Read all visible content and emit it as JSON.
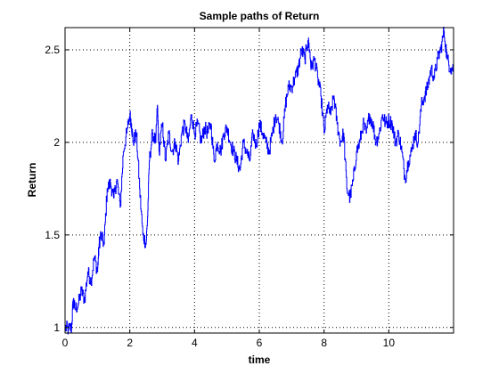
{
  "chart_data": {
    "type": "line",
    "title": "Sample paths of Return",
    "xlabel": "time",
    "ylabel": "Return",
    "xlim": [
      0,
      12
    ],
    "ylim": [
      0.97,
      2.62
    ],
    "xticks": [
      0,
      2,
      4,
      6,
      8,
      10
    ],
    "yticks": [
      1,
      1.5,
      2,
      2.5
    ],
    "xtick_labels": [
      "0",
      "2",
      "4",
      "6",
      "8",
      "10"
    ],
    "ytick_labels": [
      "1",
      "1.5",
      "2",
      "2.5"
    ],
    "grid": true,
    "series": [
      {
        "color": "#0000ff",
        "x": [
          0,
          0.1,
          0.2,
          0.25,
          0.3,
          0.4,
          0.5,
          0.6,
          0.7,
          0.8,
          0.9,
          1.0,
          1.05,
          1.1,
          1.2,
          1.3,
          1.4,
          1.5,
          1.6,
          1.7,
          1.8,
          1.9,
          2.0,
          2.05,
          2.1,
          2.2,
          2.3,
          2.4,
          2.5,
          2.55,
          2.6,
          2.7,
          2.8,
          2.85,
          2.9,
          3.0,
          3.1,
          3.2,
          3.3,
          3.4,
          3.5,
          3.6,
          3.7,
          3.8,
          3.9,
          4.0,
          4.1,
          4.2,
          4.3,
          4.4,
          4.5,
          4.6,
          4.7,
          4.8,
          4.9,
          5.0,
          5.1,
          5.2,
          5.3,
          5.4,
          5.5,
          5.6,
          5.7,
          5.8,
          5.9,
          6.0,
          6.1,
          6.2,
          6.3,
          6.4,
          6.5,
          6.6,
          6.7,
          6.8,
          6.9,
          7.0,
          7.1,
          7.2,
          7.3,
          7.4,
          7.5,
          7.55,
          7.6,
          7.7,
          7.8,
          7.9,
          8.0,
          8.1,
          8.2,
          8.3,
          8.4,
          8.5,
          8.6,
          8.7,
          8.8,
          8.9,
          9.0,
          9.1,
          9.2,
          9.3,
          9.4,
          9.5,
          9.6,
          9.7,
          9.8,
          9.9,
          10.0,
          10.1,
          10.2,
          10.3,
          10.4,
          10.5,
          10.6,
          10.7,
          10.8,
          10.9,
          11.0,
          11.1,
          11.2,
          11.3,
          11.4,
          11.5,
          11.6,
          11.7,
          11.8,
          11.9,
          12.0
        ],
        "values": [
          1.0,
          0.99,
          1.0,
          1.15,
          1.1,
          1.12,
          1.2,
          1.15,
          1.3,
          1.25,
          1.38,
          1.3,
          1.45,
          1.5,
          1.45,
          1.75,
          1.78,
          1.7,
          1.8,
          1.65,
          1.95,
          2.05,
          2.15,
          2.1,
          2.0,
          2.05,
          1.75,
          1.5,
          1.45,
          1.6,
          1.9,
          2.05,
          2.0,
          2.2,
          1.95,
          2.1,
          1.9,
          2.05,
          1.95,
          2.0,
          1.9,
          2.05,
          2.1,
          2.0,
          2.15,
          2.05,
          2.1,
          2.0,
          2.08,
          2.05,
          2.1,
          1.9,
          2.0,
          1.95,
          2.05,
          2.08,
          2.0,
          1.95,
          1.9,
          1.85,
          2.0,
          1.95,
          1.9,
          2.05,
          1.98,
          2.1,
          2.05,
          2.0,
          1.95,
          2.05,
          2.15,
          2.1,
          2.0,
          2.2,
          2.3,
          2.3,
          2.35,
          2.4,
          2.5,
          2.45,
          2.55,
          2.5,
          2.4,
          2.45,
          2.35,
          2.25,
          2.05,
          2.2,
          2.15,
          2.25,
          2.1,
          2.0,
          2.05,
          1.75,
          1.7,
          1.8,
          1.95,
          2.0,
          2.1,
          2.05,
          2.15,
          2.1,
          2.0,
          2.05,
          2.15,
          2.1,
          2.12,
          2.1,
          2.0,
          2.05,
          1.95,
          1.8,
          1.9,
          1.95,
          2.05,
          2.0,
          2.2,
          2.25,
          2.3,
          2.4,
          2.35,
          2.45,
          2.5,
          2.6,
          2.45,
          2.4,
          2.4
        ]
      }
    ]
  }
}
